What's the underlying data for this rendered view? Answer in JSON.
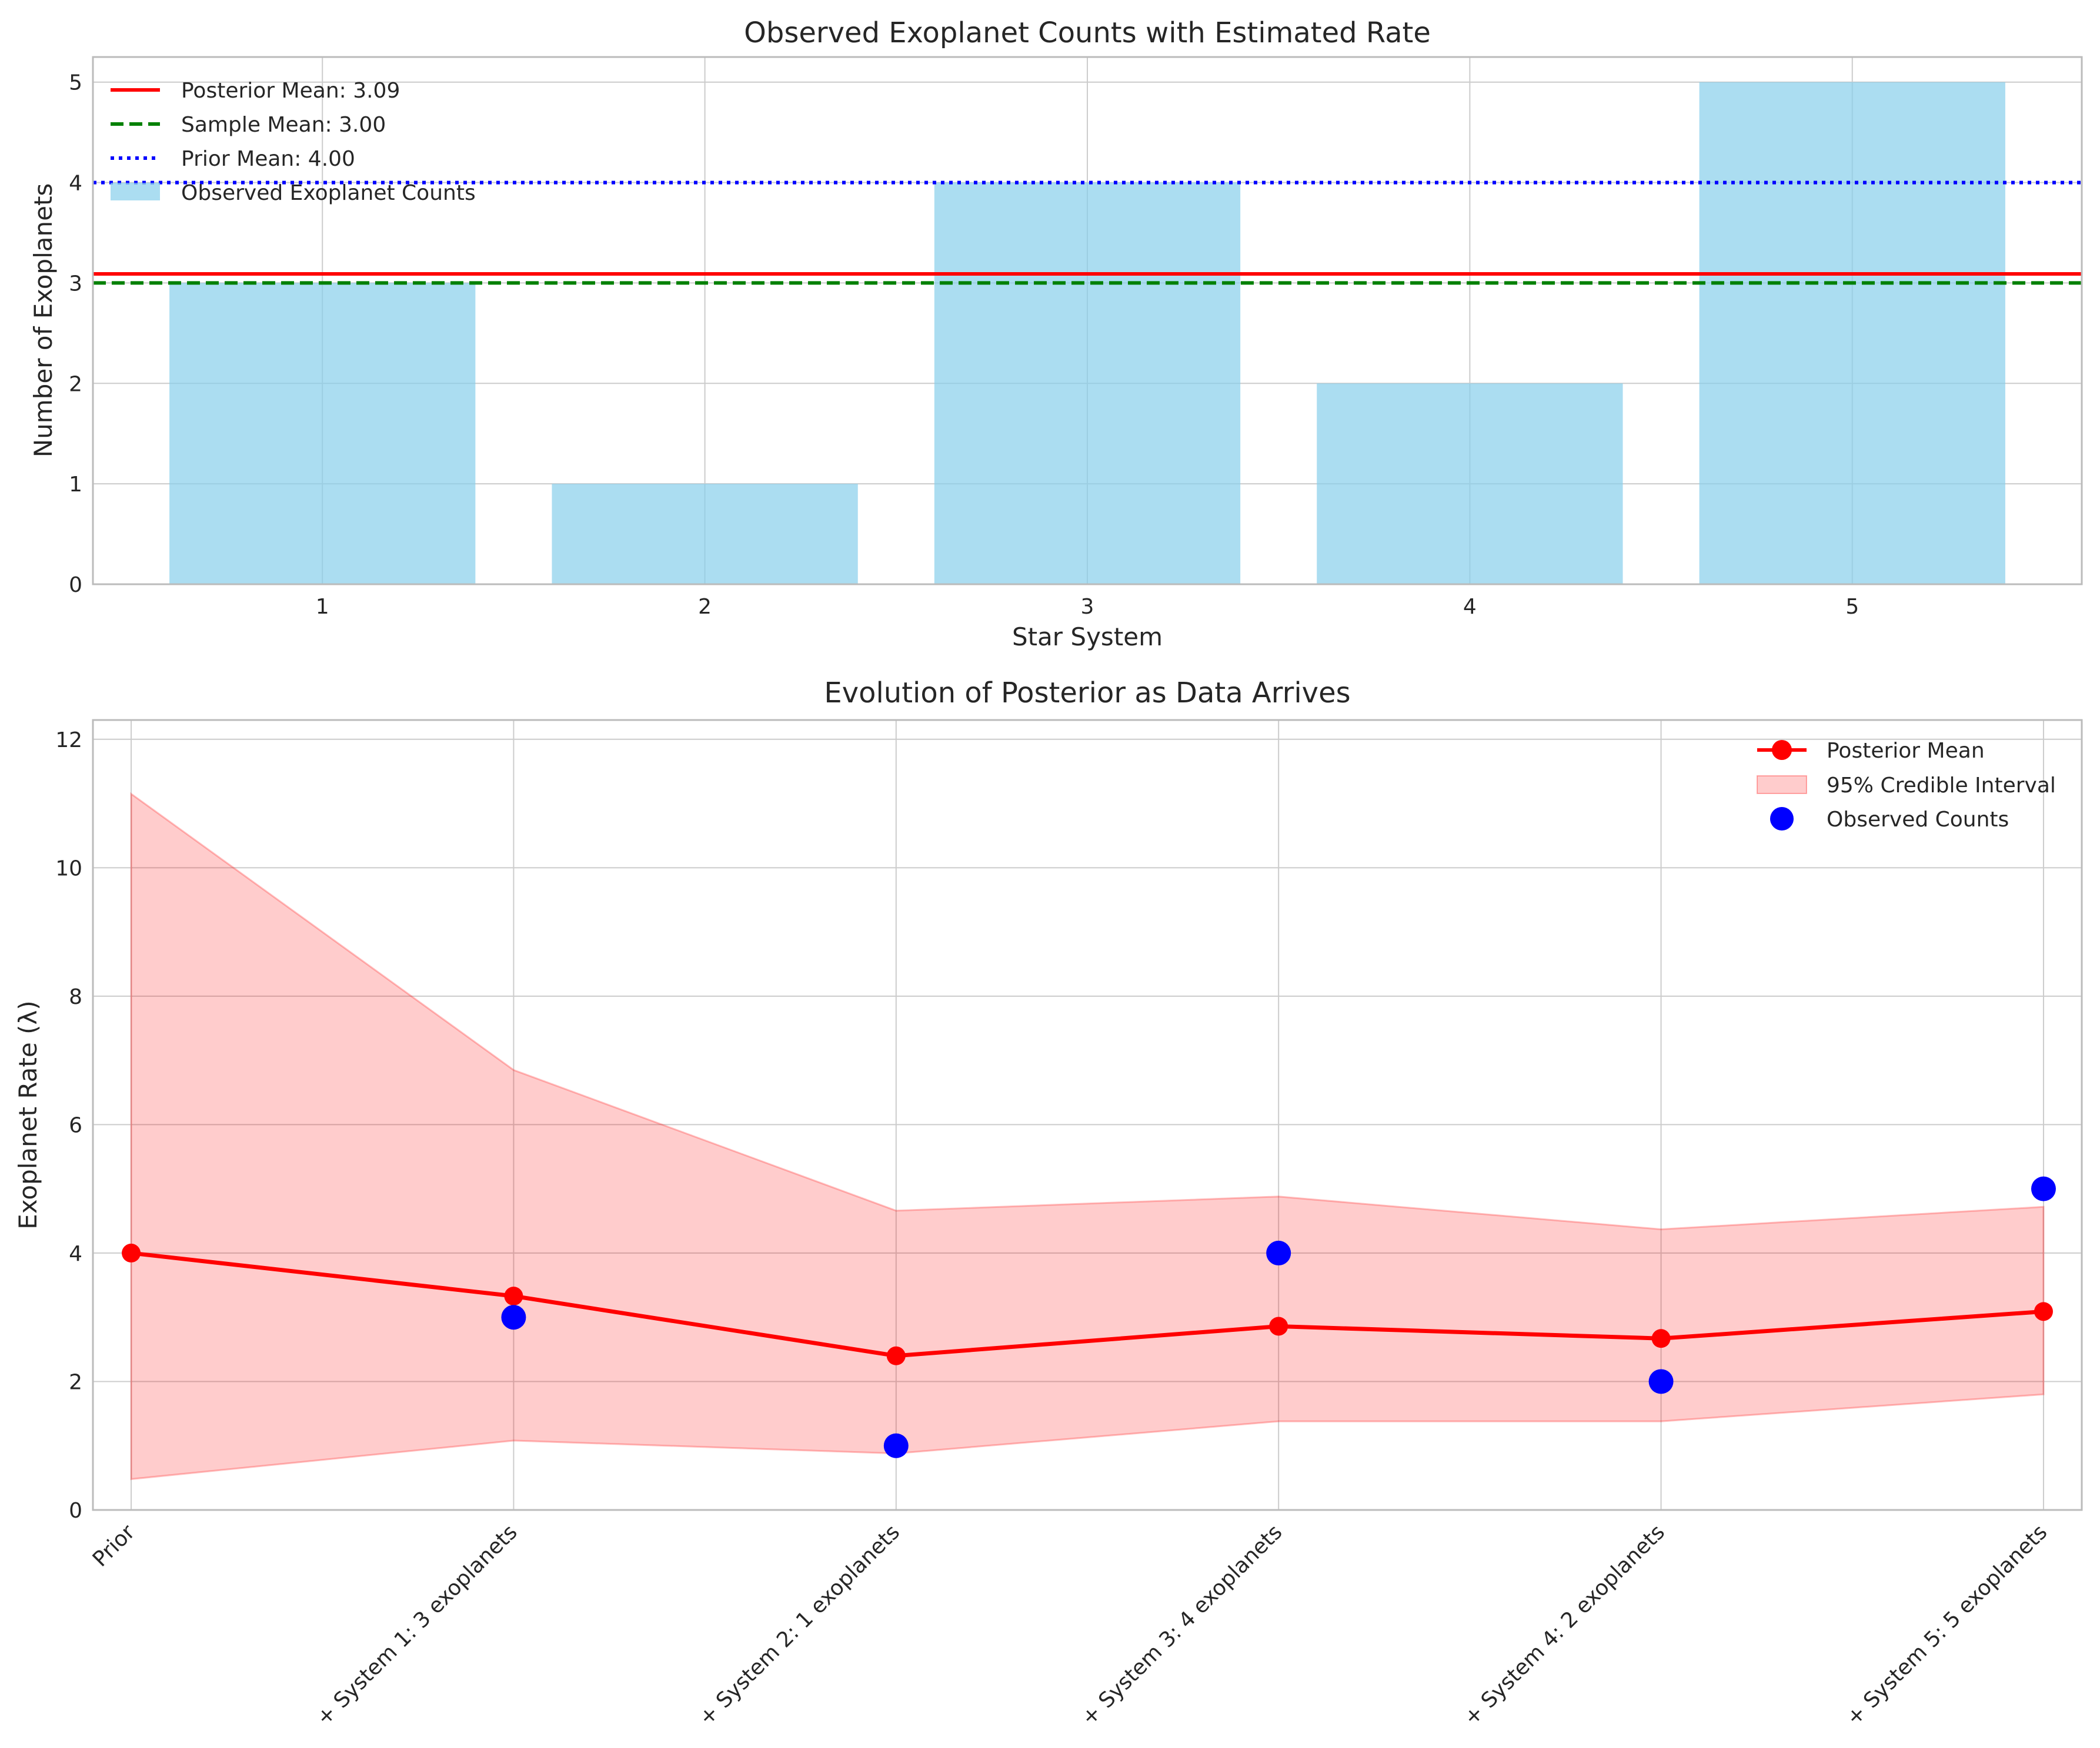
{
  "colors": {
    "bar": "#87ceeb",
    "posterior": "#ff0000",
    "sample": "#008000",
    "prior": "#0000ff",
    "interval": "#ff0000",
    "observed": "#0000ff",
    "grid": "#cccccc",
    "axis": "#bbbbbb"
  },
  "chart_data": [
    {
      "type": "bar",
      "title": "Observed Exoplanet Counts with Estimated Rate",
      "xlabel": "Star System",
      "ylabel": "Number of Exoplanets",
      "categories": [
        "1",
        "2",
        "3",
        "4",
        "5"
      ],
      "values": [
        3,
        1,
        4,
        2,
        5
      ],
      "xlim": [
        0.4,
        5.6
      ],
      "ylim": [
        0,
        5.25
      ],
      "yticks": [
        "0",
        "1",
        "2",
        "3",
        "4",
        "5"
      ],
      "grid": true,
      "legend_position": "top-left",
      "hlines": [
        {
          "name": "Posterior Mean: 3.09",
          "value": 3.09,
          "style": "solid",
          "color": "#ff0000"
        },
        {
          "name": "Sample Mean: 3.00",
          "value": 3.0,
          "style": "dashed",
          "color": "#008000"
        },
        {
          "name": "Prior Mean: 4.00",
          "value": 4.0,
          "style": "dotted",
          "color": "#0000ff"
        }
      ],
      "bar_series_name": "Observed Exoplanet Counts"
    },
    {
      "type": "line",
      "title": "Evolution of Posterior as Data Arrives",
      "xlabel": "",
      "ylabel": "Exoplanet Rate (λ)",
      "categories": [
        "Prior",
        "+ System 1: 3 exoplanets",
        "+ System 2: 1 exoplanets",
        "+ System 3: 4 exoplanets",
        "+ System 4: 2 exoplanets",
        "+ System 5: 5 exoplanets"
      ],
      "ylim": [
        0,
        12.3
      ],
      "yticks": [
        "0",
        "2",
        "4",
        "6",
        "8",
        "10",
        "12"
      ],
      "grid": true,
      "legend_position": "top-right",
      "series": [
        {
          "name": "Posterior Mean",
          "values": [
            4.0,
            3.33,
            2.4,
            2.86,
            2.67,
            3.09
          ]
        },
        {
          "name": "95% Credible Interval",
          "lower": [
            0.48,
            1.08,
            0.88,
            1.38,
            1.38,
            1.8
          ],
          "upper": [
            11.15,
            6.85,
            4.66,
            4.88,
            4.37,
            4.72
          ]
        },
        {
          "name": "Observed Counts",
          "values": [
            null,
            3,
            1,
            4,
            2,
            5
          ]
        }
      ]
    }
  ]
}
